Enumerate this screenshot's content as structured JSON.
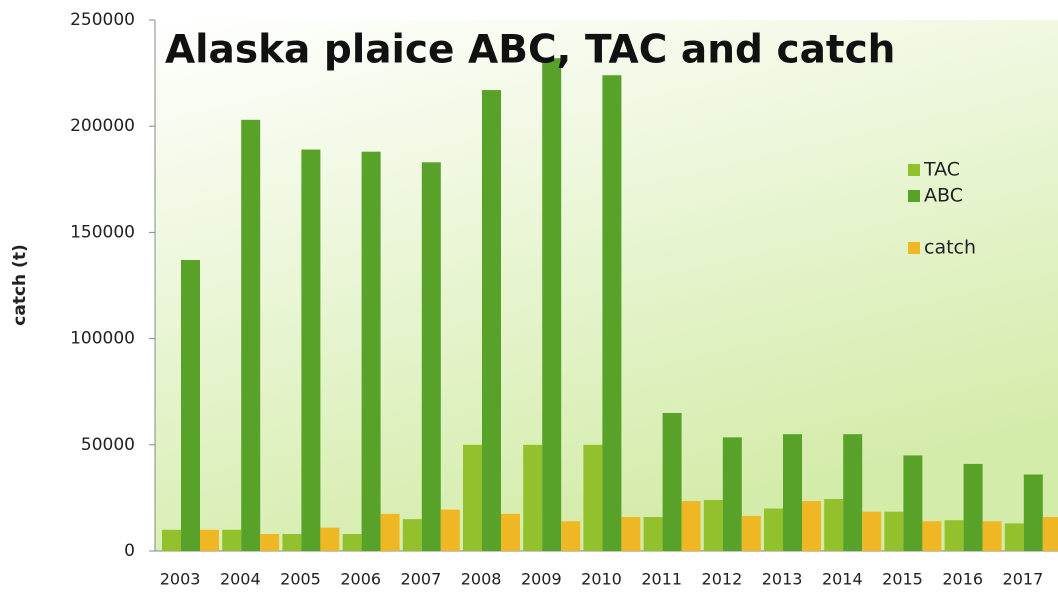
{
  "chart_data": {
    "type": "bar",
    "title": "Alaska plaice ABC, TAC and catch",
    "y_label": "catch (t)",
    "categories": [
      "2003",
      "2004",
      "2005",
      "2006",
      "2007",
      "2008",
      "2009",
      "2010",
      "2011",
      "2012",
      "2013",
      "2014",
      "2015",
      "2016",
      "2017"
    ],
    "series": [
      {
        "name": "TAC",
        "color": "#92c12d",
        "values": [
          10000,
          10000,
          8000,
          8000,
          15000,
          50000,
          50000,
          50000,
          16000,
          24000,
          20000,
          24500,
          18500,
          14500,
          13000
        ]
      },
      {
        "name": "ABC",
        "color": "#58a22a",
        "values": [
          137000,
          203000,
          189000,
          188000,
          183000,
          217000,
          232000,
          224000,
          65000,
          53500,
          55000,
          55000,
          45000,
          41000,
          36000
        ]
      },
      {
        "name": "catch",
        "color": "#f0b724",
        "values": [
          10000,
          8000,
          11000,
          17500,
          19500,
          17500,
          14000,
          16000,
          23500,
          16500,
          23500,
          18500,
          14000,
          14000,
          16000
        ]
      }
    ],
    "ylim": [
      0,
      250000
    ],
    "yticks": [
      0,
      50000,
      100000,
      150000,
      200000,
      250000
    ],
    "grid": false,
    "legend": "right"
  }
}
